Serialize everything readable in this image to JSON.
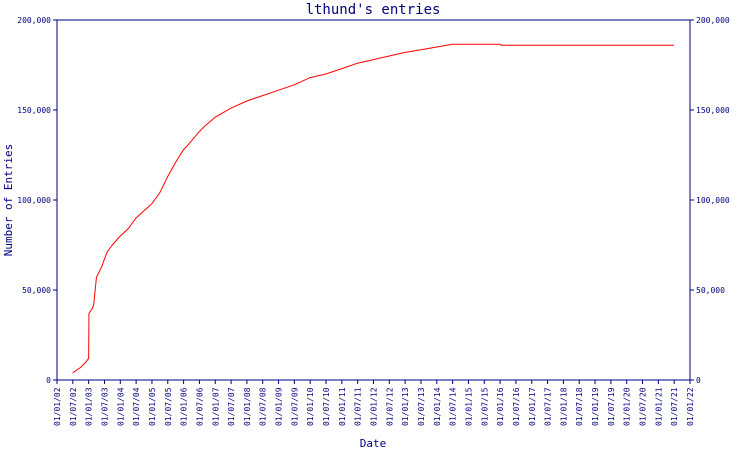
{
  "chart_data": {
    "type": "line",
    "title": "lthund's entries",
    "xlabel": "Date",
    "ylabel": "Number of Entries",
    "ylim": [
      0,
      200000
    ],
    "y_ticks": [
      0,
      50000,
      100000,
      150000,
      200000
    ],
    "y_tick_labels": [
      "0",
      "50,000",
      "100,000",
      "150,000",
      "200,000"
    ],
    "x_range": [
      "2002-01-01",
      "2022-01-01"
    ],
    "x_tick_labels": [
      "01/01/02",
      "01/07/02",
      "01/01/03",
      "01/07/03",
      "01/01/04",
      "01/07/04",
      "01/01/05",
      "01/07/05",
      "01/01/06",
      "01/07/06",
      "01/01/07",
      "01/07/07",
      "01/01/08",
      "01/07/08",
      "01/01/09",
      "01/07/09",
      "01/01/10",
      "01/07/10",
      "01/01/11",
      "01/07/11",
      "01/01/12",
      "01/07/12",
      "01/01/13",
      "01/07/13",
      "01/01/14",
      "01/07/14",
      "01/01/15",
      "01/07/15",
      "01/01/16",
      "01/07/16",
      "01/01/17",
      "01/07/17",
      "01/01/18",
      "01/07/18",
      "01/01/19",
      "01/07/19",
      "01/01/20",
      "01/07/20",
      "01/01/21",
      "01/07/21",
      "01/01/22"
    ],
    "grid": false,
    "colors": {
      "frame": "#000080",
      "text": "#000080",
      "line": "#ff0000"
    },
    "series": [
      {
        "x": [
          "2002-07-01",
          "2002-10-01",
          "2002-12-01",
          "2003-01-01",
          "2003-01-05",
          "2003-02-15",
          "2003-03-01",
          "2003-04-01",
          "2003-06-01",
          "2003-08-01",
          "2003-10-01",
          "2004-01-01",
          "2004-04-01",
          "2004-07-01",
          "2004-10-01",
          "2005-01-01",
          "2005-04-01",
          "2005-07-01",
          "2005-10-01",
          "2006-01-01",
          "2006-03-01",
          "2006-07-01",
          "2006-09-01",
          "2007-01-01",
          "2007-07-01",
          "2008-01-01",
          "2008-07-01",
          "2009-01-01",
          "2009-07-01",
          "2010-01-01",
          "2010-07-01",
          "2011-01-01",
          "2011-07-01",
          "2012-01-01",
          "2012-07-01",
          "2013-01-01",
          "2013-07-01",
          "2014-01-01",
          "2014-07-01",
          "2015-07-01",
          "2016-01-01",
          "2016-01-15",
          "2017-01-01",
          "2018-01-01",
          "2019-01-01",
          "2020-01-01",
          "2021-01-01",
          "2021-07-01"
        ],
        "y": [
          4000,
          7000,
          10000,
          12000,
          37000,
          40000,
          42000,
          57000,
          63000,
          71000,
          75000,
          80000,
          84000,
          90000,
          94000,
          98000,
          104000,
          113000,
          121000,
          128000,
          131000,
          138000,
          141000,
          146000,
          151000,
          155000,
          158000,
          161000,
          164000,
          168000,
          170000,
          173000,
          176000,
          178000,
          180000,
          182000,
          183500,
          185000,
          186500,
          186500,
          186500,
          186000,
          186000,
          186000,
          186000,
          186000,
          186000,
          186000
        ]
      }
    ]
  }
}
